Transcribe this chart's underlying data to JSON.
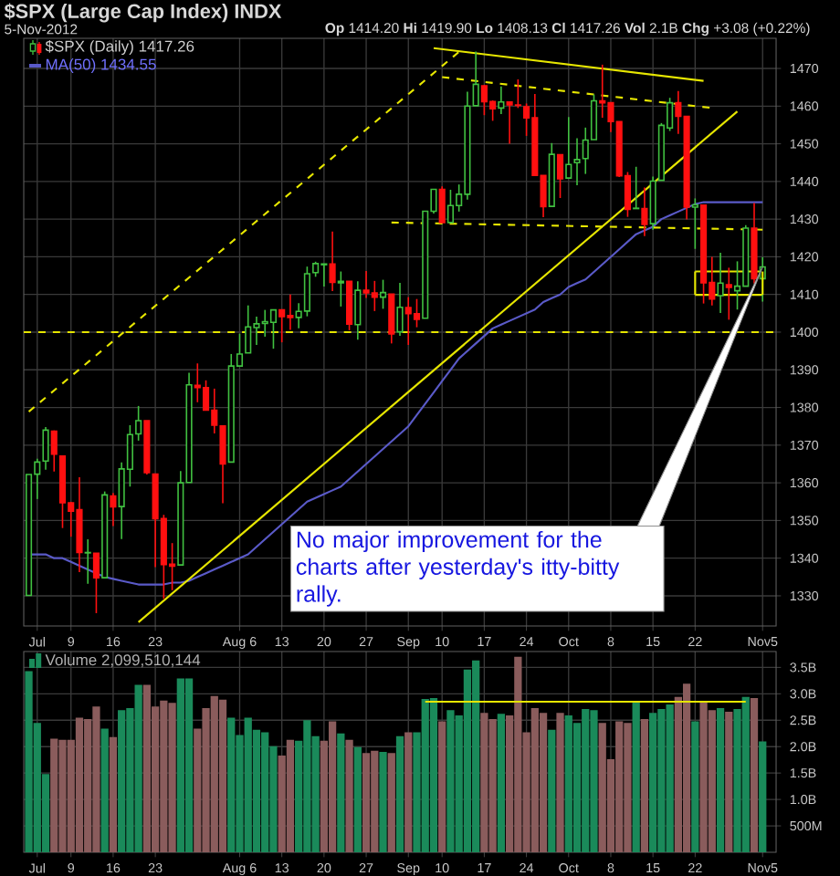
{
  "chart_data": [
    {
      "type": "candlestick",
      "title": "$SPX (Large Cap Index) INDX",
      "subtitle": "**Op** 1414.20 **Hi** 1419.90 **Lo** 1408.13 **Cl** 1417.26 **Vol** 2.1B **Chg** +3.08 (+0.22%)",
      "annotations": [
        "5-Nov-2012",
        "No major improvement for the charts after yesterday's itty-bitty rally."
      ],
      "categories": [
        null,
        "Jul",
        null,
        null,
        null,
        "9",
        null,
        null,
        null,
        null,
        "16",
        null,
        null,
        null,
        null,
        "23",
        null,
        null,
        null,
        null,
        null,
        null,
        null,
        null,
        null,
        "Aug 6",
        null,
        null,
        null,
        null,
        "13",
        null,
        null,
        null,
        null,
        "20",
        null,
        null,
        null,
        null,
        "27",
        null,
        null,
        null,
        null,
        "Sep",
        null,
        null,
        null,
        "10",
        null,
        null,
        null,
        null,
        "17",
        null,
        null,
        null,
        null,
        "24",
        null,
        null,
        null,
        null,
        "Oct",
        null,
        null,
        null,
        null,
        "8",
        null,
        null,
        null,
        null,
        "15",
        null,
        null,
        null,
        null,
        "22",
        null,
        null,
        null,
        null,
        null,
        null,
        null,
        "Nov5"
      ],
      "ylim": [
        1322,
        1478
      ],
      "yticks": [
        1330,
        1340,
        1350,
        1360,
        1370,
        1380,
        1390,
        1400,
        1410,
        1420,
        1430,
        1440,
        1450,
        1460,
        1470
      ],
      "grid": true,
      "legend": "top left",
      "ref_lines": [
        {
          "axis": "y",
          "value": 1400,
          "color": "#e6e600",
          "line_style": "dashed"
        }
      ],
      "series": [
        {
          "type": "candlestick",
          "name": "$SPX (Daily) 1417.26",
          "ohlc": [
            [
              1330.1,
              1362.2,
              1330.1,
              1362.2
            ],
            [
              1362.3,
              1366.4,
              1355.7,
              1365.5
            ],
            [
              1365.8,
              1374.8,
              1363.5,
              1374.0
            ],
            [
              1373.7,
              1373.9,
              1363.0,
              1367.6
            ],
            [
              1367.1,
              1367.1,
              1348.0,
              1354.7
            ],
            [
              1354.7,
              1354.9,
              1345.7,
              1352.5
            ],
            [
              1352.9,
              1361.5,
              1336.3,
              1341.5
            ],
            [
              1341.4,
              1345.0,
              1333.2,
              1341.5
            ],
            [
              1341.3,
              1341.3,
              1325.4,
              1334.8
            ],
            [
              1334.8,
              1357.7,
              1334.8,
              1356.8
            ],
            [
              1356.5,
              1357.3,
              1348.5,
              1353.6
            ],
            [
              1353.7,
              1365.4,
              1345.1,
              1363.7
            ],
            [
              1363.6,
              1375.3,
              1359.0,
              1372.8
            ],
            [
              1373.0,
              1380.4,
              1371.2,
              1376.5
            ],
            [
              1376.5,
              1376.5,
              1362.2,
              1362.7
            ],
            [
              1362.3,
              1362.3,
              1337.6,
              1350.5
            ],
            [
              1350.5,
              1351.5,
              1329.2,
              1338.3
            ],
            [
              1338.4,
              1344.0,
              1331.5,
              1337.9
            ],
            [
              1338.2,
              1363.1,
              1338.2,
              1360.0
            ],
            [
              1360.1,
              1389.2,
              1360.1,
              1386.0
            ],
            [
              1385.9,
              1391.7,
              1381.4,
              1385.3
            ],
            [
              1385.3,
              1387.2,
              1379.2,
              1379.3
            ],
            [
              1379.3,
              1385.0,
              1373.1,
              1375.3
            ],
            [
              1375.1,
              1375.1,
              1354.6,
              1365.0
            ],
            [
              1365.5,
              1394.2,
              1365.5,
              1391.0
            ],
            [
              1391.0,
              1399.6,
              1391.0,
              1394.2
            ],
            [
              1394.5,
              1407.1,
              1394.5,
              1401.4
            ],
            [
              1401.2,
              1404.1,
              1396.6,
              1402.2
            ],
            [
              1402.3,
              1405.9,
              1398.8,
              1402.8
            ],
            [
              1402.6,
              1406.0,
              1395.6,
              1405.9
            ],
            [
              1405.9,
              1405.9,
              1397.3,
              1404.1
            ],
            [
              1404.4,
              1410.0,
              1400.6,
              1403.9
            ],
            [
              1403.9,
              1407.7,
              1401.0,
              1405.5
            ],
            [
              1405.6,
              1417.4,
              1404.2,
              1415.5
            ],
            [
              1415.8,
              1418.7,
              1414.7,
              1418.2
            ],
            [
              1417.9,
              1418.1,
              1412.1,
              1418.1
            ],
            [
              1418.1,
              1426.7,
              1410.9,
              1413.2
            ],
            [
              1413.1,
              1416.1,
              1406.8,
              1413.5
            ],
            [
              1413.5,
              1413.5,
              1400.5,
              1402.1
            ],
            [
              1402.0,
              1413.5,
              1398.0,
              1411.1
            ],
            [
              1411.1,
              1416.2,
              1409.1,
              1410.4
            ],
            [
              1410.4,
              1413.6,
              1405.6,
              1409.3
            ],
            [
              1409.3,
              1413.9,
              1406.2,
              1410.5
            ],
            [
              1410.1,
              1410.1,
              1397.0,
              1399.5
            ],
            [
              1400.1,
              1413.1,
              1399.0,
              1406.6
            ],
            [
              1406.5,
              1409.3,
              1396.6,
              1404.9
            ],
            [
              1404.9,
              1408.8,
              1401.3,
              1403.4
            ],
            [
              1403.7,
              1432.1,
              1403.7,
              1432.1
            ],
            [
              1432.1,
              1437.9,
              1431.5,
              1437.9
            ],
            [
              1437.9,
              1438.7,
              1429.0,
              1429.1
            ],
            [
              1429.1,
              1437.8,
              1429.1,
              1433.6
            ],
            [
              1433.6,
              1439.2,
              1432.0,
              1436.6
            ],
            [
              1436.6,
              1463.8,
              1435.2,
              1460.0
            ],
            [
              1460.1,
              1474.5,
              1460.1,
              1465.8
            ],
            [
              1465.4,
              1465.6,
              1457.6,
              1461.2
            ],
            [
              1461.2,
              1461.5,
              1456.1,
              1459.3
            ],
            [
              1459.5,
              1465.2,
              1457.9,
              1461.1
            ],
            [
              1461.1,
              1461.2,
              1450.0,
              1460.3
            ],
            [
              1460.3,
              1467.1,
              1459.5,
              1460.2
            ],
            [
              1459.8,
              1460.7,
              1452.1,
              1456.9
            ],
            [
              1456.9,
              1463.2,
              1441.6,
              1441.6
            ],
            [
              1441.6,
              1441.6,
              1430.5,
              1433.3
            ],
            [
              1433.4,
              1450.2,
              1433.4,
              1447.2
            ],
            [
              1447.1,
              1447.1,
              1435.6,
              1440.7
            ],
            [
              1440.9,
              1457.1,
              1440.9,
              1444.5
            ],
            [
              1445.0,
              1451.5,
              1439.0,
              1445.8
            ],
            [
              1446.1,
              1454.3,
              1442.0,
              1451.0
            ],
            [
              1451.1,
              1463.1,
              1451.1,
              1461.4
            ],
            [
              1461.4,
              1471.0,
              1456.9,
              1460.9
            ],
            [
              1460.9,
              1460.9,
              1453.1,
              1455.9
            ],
            [
              1455.9,
              1455.9,
              1441.2,
              1441.5
            ],
            [
              1441.5,
              1442.5,
              1430.6,
              1432.6
            ],
            [
              1432.8,
              1443.9,
              1432.8,
              1432.9
            ],
            [
              1432.8,
              1438.4,
              1425.5,
              1428.6
            ],
            [
              1428.8,
              1441.3,
              1427.2,
              1440.1
            ],
            [
              1440.3,
              1455.5,
              1440.3,
              1454.9
            ],
            [
              1454.2,
              1462.2,
              1453.4,
              1460.9
            ],
            [
              1460.9,
              1464.0,
              1452.6,
              1457.3
            ],
            [
              1457.3,
              1457.3,
              1429.9,
              1433.2
            ],
            [
              1433.2,
              1435.5,
              1422.1,
              1433.8
            ],
            [
              1433.7,
              1433.7,
              1407.6,
              1413.1
            ],
            [
              1413.2,
              1420.0,
              1407.1,
              1408.8
            ],
            [
              1409.7,
              1421.1,
              1405.1,
              1413.0
            ],
            [
              1412.6,
              1417.1,
              1403.3,
              1411.9
            ],
            [
              1411.0,
              1418.8,
              1406.0,
              1412.2
            ],
            [
              1412.2,
              1428.4,
              1412.2,
              1427.6
            ],
            [
              1427.6,
              1434.3,
              1412.9,
              1414.2
            ],
            [
              1414.2,
              1419.9,
              1408.1,
              1417.3
            ]
          ]
        },
        {
          "type": "line",
          "name": "MA(50) 1434.55",
          "color": "#5a5ac8",
          "values": [
            1341,
            1341,
            1341,
            1340,
            1340,
            1339,
            1338,
            1337,
            1336,
            1335,
            1334.5,
            1334,
            1333.5,
            1333,
            1333,
            1333,
            1333,
            1333.5,
            1333.5,
            1334,
            1335,
            1336,
            1337,
            1338,
            1339,
            1340,
            1341,
            1343,
            1345,
            1347,
            1349,
            1351,
            1353,
            1355,
            1356,
            1357,
            1358,
            1359,
            1361,
            1363,
            1365,
            1367,
            1369,
            1371,
            1373,
            1375,
            1378,
            1381,
            1384,
            1387,
            1390,
            1393,
            1395,
            1397,
            1399,
            1401,
            1402,
            1403,
            1404,
            1405,
            1406,
            1408,
            1409,
            1410,
            1412,
            1413,
            1414,
            1416,
            1418,
            1420,
            1422,
            1424,
            1426,
            1427,
            1428,
            1430,
            1431,
            1432,
            1433,
            1434,
            1434.5,
            1434.5,
            1434.5,
            1434.5,
            1434.5,
            1434.5,
            1434.5,
            1434.5
          ]
        },
        {
          "type": "line",
          "color": "#e6e600",
          "line_style": "solid",
          "values": [
            null,
            null,
            null,
            null,
            null,
            null,
            null,
            null,
            null,
            null,
            null,
            null,
            null,
            1323,
            null,
            null,
            null,
            null,
            null,
            null,
            null,
            null,
            null,
            null,
            null,
            null,
            null,
            null,
            null,
            null,
            null,
            null,
            null,
            null,
            null,
            null,
            null,
            null,
            null,
            null,
            null,
            null,
            null,
            null,
            null,
            null,
            null,
            null,
            null,
            null,
            null,
            null,
            null,
            null,
            null,
            null,
            null,
            null,
            null,
            null,
            null,
            null,
            null,
            null,
            null,
            null,
            null,
            null,
            null,
            null,
            null,
            null,
            null,
            null,
            null,
            null,
            null,
            null,
            null,
            null,
            null,
            null,
            null,
            null,
            1458.6,
            null,
            null,
            null
          ]
        },
        {
          "type": "line",
          "color": "#e6e600",
          "line_style": "dashed",
          "values": [
            1378.9,
            null,
            null,
            null,
            null,
            null,
            null,
            null,
            null,
            null,
            null,
            null,
            null,
            null,
            null,
            null,
            null,
            null,
            null,
            null,
            null,
            null,
            null,
            null,
            null,
            null,
            null,
            null,
            null,
            null,
            null,
            null,
            null,
            null,
            null,
            null,
            null,
            null,
            null,
            null,
            null,
            null,
            null,
            null,
            null,
            null,
            null,
            null,
            null,
            null,
            null,
            1474.4,
            null,
            null,
            null,
            null,
            null,
            null,
            null,
            null,
            null,
            null,
            null,
            null,
            null,
            null,
            null,
            null,
            null,
            null,
            null,
            null,
            null,
            null,
            null,
            null,
            null,
            null,
            null,
            null,
            null,
            null,
            null,
            null,
            null,
            null,
            null,
            null
          ]
        },
        {
          "type": "line",
          "color": "#e6e600",
          "line_style": "solid",
          "values": [
            null,
            null,
            null,
            null,
            null,
            null,
            null,
            null,
            null,
            null,
            null,
            null,
            null,
            null,
            null,
            null,
            null,
            null,
            null,
            null,
            null,
            null,
            null,
            null,
            null,
            null,
            null,
            null,
            null,
            null,
            null,
            null,
            null,
            null,
            null,
            null,
            null,
            null,
            null,
            null,
            null,
            null,
            null,
            null,
            null,
            null,
            null,
            null,
            1475.4,
            null,
            null,
            null,
            null,
            null,
            null,
            null,
            null,
            null,
            null,
            null,
            null,
            null,
            null,
            null,
            null,
            null,
            null,
            null,
            null,
            null,
            null,
            null,
            null,
            null,
            null,
            null,
            null,
            null,
            null,
            null,
            1466.7,
            null,
            null,
            null,
            null,
            null,
            null,
            null
          ]
        },
        {
          "type": "line",
          "color": "#e6e600",
          "line_style": "dashed",
          "values": [
            null,
            null,
            null,
            null,
            null,
            null,
            null,
            null,
            null,
            null,
            null,
            null,
            null,
            null,
            null,
            null,
            null,
            null,
            null,
            null,
            null,
            null,
            null,
            null,
            null,
            null,
            null,
            null,
            null,
            null,
            null,
            null,
            null,
            null,
            null,
            null,
            null,
            null,
            null,
            null,
            null,
            null,
            null,
            null,
            null,
            null,
            null,
            null,
            null,
            1467.7,
            null,
            null,
            null,
            null,
            null,
            null,
            null,
            null,
            null,
            null,
            null,
            null,
            null,
            null,
            null,
            null,
            null,
            null,
            null,
            null,
            null,
            null,
            null,
            null,
            null,
            null,
            null,
            null,
            null,
            null,
            null,
            1459.5,
            null,
            null,
            null,
            null,
            null,
            null
          ]
        },
        {
          "type": "line",
          "color": "#e6e600",
          "line_style": "dashed",
          "values": [
            null,
            null,
            null,
            null,
            null,
            null,
            null,
            null,
            null,
            null,
            null,
            null,
            null,
            null,
            null,
            null,
            null,
            null,
            null,
            null,
            null,
            null,
            null,
            null,
            null,
            null,
            null,
            null,
            null,
            null,
            null,
            null,
            null,
            null,
            null,
            null,
            null,
            null,
            null,
            null,
            null,
            null,
            null,
            1429.1,
            null,
            null,
            null,
            null,
            null,
            null,
            null,
            null,
            null,
            null,
            null,
            null,
            null,
            null,
            null,
            null,
            null,
            null,
            null,
            null,
            null,
            null,
            null,
            null,
            null,
            null,
            null,
            null,
            null,
            null,
            null,
            null,
            null,
            null,
            null,
            null,
            null,
            null,
            null,
            null,
            null,
            null,
            null,
            1427.2
          ]
        },
        {
          "type": "line",
          "color": "#e6e600",
          "line_style": "solid",
          "values": [
            null,
            null,
            null,
            null,
            null,
            null,
            null,
            null,
            null,
            null,
            null,
            null,
            null,
            null,
            null,
            null,
            null,
            null,
            null,
            null,
            null,
            null,
            null,
            null,
            null,
            null,
            null,
            null,
            null,
            null,
            null,
            null,
            null,
            null,
            null,
            null,
            null,
            null,
            null,
            null,
            null,
            null,
            null,
            null,
            null,
            null,
            null,
            null,
            null,
            null,
            null,
            null,
            null,
            null,
            null,
            null,
            null,
            null,
            null,
            null,
            null,
            null,
            null,
            null,
            null,
            null,
            null,
            null,
            null,
            null,
            null,
            null,
            null,
            null,
            null,
            null,
            null,
            null,
            null,
            1416.1,
            null,
            null,
            null,
            null,
            null,
            null,
            null,
            1416.1
          ]
        },
        {
          "type": "line",
          "color": "#e6e600",
          "line_style": "solid",
          "values": [
            null,
            null,
            null,
            null,
            null,
            null,
            null,
            null,
            null,
            null,
            null,
            null,
            null,
            null,
            null,
            null,
            null,
            null,
            null,
            null,
            null,
            null,
            null,
            null,
            null,
            null,
            null,
            null,
            null,
            null,
            null,
            null,
            null,
            null,
            null,
            null,
            null,
            null,
            null,
            null,
            null,
            null,
            null,
            null,
            null,
            null,
            null,
            null,
            null,
            null,
            null,
            null,
            null,
            null,
            null,
            null,
            null,
            null,
            null,
            null,
            null,
            null,
            null,
            null,
            null,
            null,
            null,
            null,
            null,
            null,
            null,
            null,
            null,
            null,
            null,
            null,
            null,
            null,
            null,
            1409.9,
            null,
            null,
            null,
            null,
            null,
            null,
            null,
            1409.9
          ]
        }
      ]
    },
    {
      "type": "bar",
      "categories": [
        null,
        "Jul",
        null,
        null,
        null,
        "9",
        null,
        null,
        null,
        null,
        "16",
        null,
        null,
        null,
        null,
        "23",
        null,
        null,
        null,
        null,
        null,
        null,
        null,
        null,
        null,
        "Aug 6",
        null,
        null,
        null,
        null,
        "13",
        null,
        null,
        null,
        null,
        "20",
        null,
        null,
        null,
        null,
        "27",
        null,
        null,
        null,
        null,
        "Sep",
        null,
        null,
        null,
        "10",
        null,
        null,
        null,
        null,
        "17",
        null,
        null,
        null,
        null,
        "24",
        null,
        null,
        null,
        null,
        "Oct",
        null,
        null,
        null,
        null,
        "8",
        null,
        null,
        null,
        null,
        "15",
        null,
        null,
        null,
        null,
        "22",
        null,
        null,
        null,
        null,
        null,
        null,
        null,
        "Nov5"
      ],
      "ylim": [
        0,
        3800000000.0
      ],
      "yticks": [
        {
          "value": 500000000.0,
          "label": "500M"
        },
        {
          "value": 1000000000.0,
          "label": "1.0B"
        },
        {
          "value": 1500000000.0,
          "label": "1.5B"
        },
        {
          "value": 2000000000.0,
          "label": "2.0B"
        },
        {
          "value": 2500000000.0,
          "label": "2.5B"
        },
        {
          "value": 3000000000.0,
          "label": "3.0B"
        },
        {
          "value": 3500000000.0,
          "label": "3.5B"
        }
      ],
      "grid": true,
      "legend": "top left",
      "series": [
        {
          "name": "Volume 2,099,510,144",
          "values": [
            3430000000.0,
            2450000000.0,
            1480000000.0,
            2150000000.0,
            2130000000.0,
            2130000000.0,
            2550000000.0,
            2520000000.0,
            2760000000.0,
            2340000000.0,
            2180000000.0,
            2690000000.0,
            2730000000.0,
            3170000000.0,
            3170000000.0,
            2760000000.0,
            2870000000.0,
            2830000000.0,
            3290000000.0,
            3290000000.0,
            2340000000.0,
            2730000000.0,
            2960000000.0,
            2890000000.0,
            2550000000.0,
            2220000000.0,
            2550000000.0,
            2320000000.0,
            2270000000.0,
            2010000000.0,
            1830000000.0,
            2130000000.0,
            2110000000.0,
            2500000000.0,
            2200000000.0,
            2110000000.0,
            2480000000.0,
            2250000000.0,
            2130000000.0,
            1990000000.0,
            1880000000.0,
            1920000000.0,
            1900000000.0,
            1880000000.0,
            2200000000.0,
            2270000000.0,
            2270000000.0,
            2900000000.0,
            2920000000.0,
            2480000000.0,
            2690000000.0,
            2590000000.0,
            3460000000.0,
            3630000000.0,
            2640000000.0,
            2520000000.0,
            2620000000.0,
            2590000000.0,
            3700000000.0,
            2270000000.0,
            2730000000.0,
            2640000000.0,
            2320000000.0,
            2640000000.0,
            2590000000.0,
            2450000000.0,
            2710000000.0,
            2690000000.0,
            2450000000.0,
            1760000000.0,
            2480000000.0,
            2450000000.0,
            2850000000.0,
            2520000000.0,
            2640000000.0,
            2710000000.0,
            2800000000.0,
            2940000000.0,
            3190000000.0,
            2480000000.0,
            2850000000.0,
            2690000000.0,
            2730000000.0,
            2660000000.0,
            2710000000.0,
            2940000000.0,
            2920000000.0,
            2100000000.0
          ],
          "colors": [
            "#1a8a5a",
            "#1a8a5a",
            "#1a8a5a",
            "#8a5c5c",
            "#8a5c5c",
            "#8a5c5c",
            "#8a5c5c",
            "#8a5c5c",
            "#8a5c5c",
            "#1a8a5a",
            "#8a5c5c",
            "#1a8a5a",
            "#1a8a5a",
            "#1a8a5a",
            "#8a5c5c",
            "#8a5c5c",
            "#8a5c5c",
            "#8a5c5c",
            "#1a8a5a",
            "#1a8a5a",
            "#8a5c5c",
            "#8a5c5c",
            "#8a5c5c",
            "#8a5c5c",
            "#1a8a5a",
            "#1a8a5a",
            "#1a8a5a",
            "#1a8a5a",
            "#1a8a5a",
            "#1a8a5a",
            "#8a5c5c",
            "#8a5c5c",
            "#1a8a5a",
            "#1a8a5a",
            "#1a8a5a",
            "#8a5c5c",
            "#8a5c5c",
            "#1a8a5a",
            "#8a5c5c",
            "#1a8a5a",
            "#8a5c5c",
            "#8a5c5c",
            "#1a8a5a",
            "#8a5c5c",
            "#1a8a5a",
            "#8a5c5c",
            "#1a8a5a",
            "#1a8a5a",
            "#1a8a5a",
            "#8a5c5c",
            "#1a8a5a",
            "#1a8a5a",
            "#1a8a5a",
            "#1a8a5a",
            "#8a5c5c",
            "#8a5c5c",
            "#1a8a5a",
            "#8a5c5c",
            "#8a5c5c",
            "#8a5c5c",
            "#8a5c5c",
            "#8a5c5c",
            "#1a8a5a",
            "#8a5c5c",
            "#1a8a5a",
            "#1a8a5a",
            "#1a8a5a",
            "#1a8a5a",
            "#8a5c5c",
            "#8a5c5c",
            "#8a5c5c",
            "#8a5c5c",
            "#1a8a5a",
            "#8a5c5c",
            "#1a8a5a",
            "#1a8a5a",
            "#1a8a5a",
            "#8a5c5c",
            "#8a5c5c",
            "#1a8a5a",
            "#8a5c5c",
            "#8a5c5c",
            "#1a8a5a",
            "#8a5c5c",
            "#1a8a5a",
            "#1a8a5a",
            "#8a5c5c",
            "#1a8a5a"
          ]
        },
        {
          "type": "line",
          "color": "#e6e600",
          "line_style": "solid",
          "values": [
            null,
            null,
            null,
            null,
            null,
            null,
            null,
            null,
            null,
            null,
            null,
            null,
            null,
            null,
            null,
            null,
            null,
            null,
            null,
            null,
            null,
            null,
            null,
            null,
            null,
            null,
            null,
            null,
            null,
            null,
            null,
            null,
            null,
            null,
            null,
            null,
            null,
            null,
            null,
            null,
            null,
            null,
            null,
            null,
            null,
            null,
            null,
            2850000000.0,
            null,
            null,
            null,
            null,
            null,
            null,
            null,
            null,
            null,
            null,
            null,
            null,
            null,
            null,
            null,
            null,
            null,
            null,
            null,
            null,
            null,
            null,
            null,
            null,
            null,
            null,
            null,
            null,
            null,
            null,
            null,
            null,
            null,
            null,
            null,
            null,
            null,
            2850000000.0,
            null,
            null
          ]
        }
      ]
    }
  ]
}
